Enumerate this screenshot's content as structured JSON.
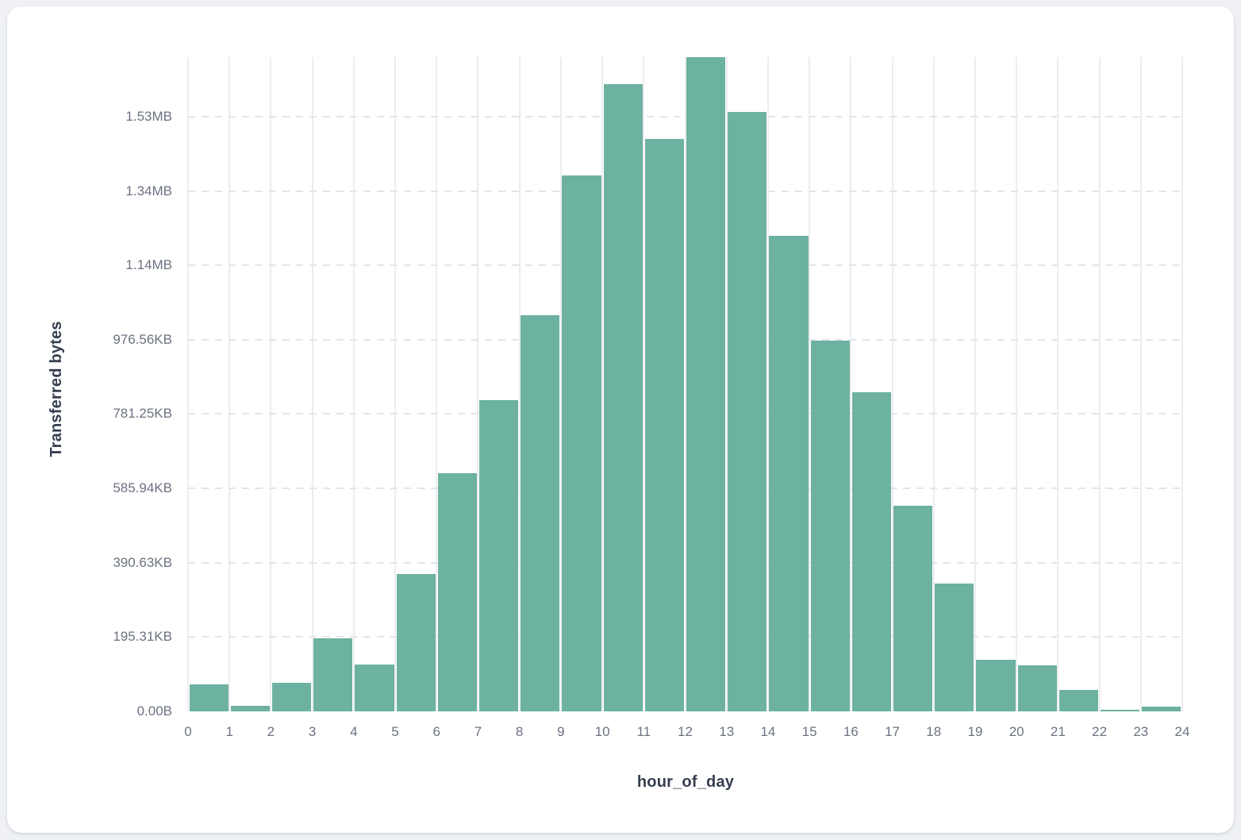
{
  "chart_data": {
    "type": "bar",
    "title": "",
    "xlabel": "hour_of_day",
    "ylabel": "Transferred bytes",
    "categories": [
      0,
      1,
      2,
      3,
      4,
      5,
      6,
      7,
      8,
      9,
      10,
      11,
      12,
      13,
      14,
      15,
      16,
      17,
      18,
      19,
      20,
      21,
      22,
      23
    ],
    "values": [
      72600,
      15200,
      77000,
      196500,
      125400,
      370000,
      640000,
      838000,
      1067000,
      1441000,
      1688000,
      1541000,
      1760000,
      1613000,
      1280000,
      997000,
      858000,
      554000,
      344000,
      139000,
      125000,
      57000,
      5000,
      13000
    ],
    "value_unit": "bytes",
    "ylim": [
      0,
      1760000
    ],
    "x_tick_labels": [
      "0",
      "1",
      "2",
      "3",
      "4",
      "5",
      "6",
      "7",
      "8",
      "9",
      "10",
      "11",
      "12",
      "13",
      "14",
      "15",
      "16",
      "17",
      "18",
      "19",
      "20",
      "21",
      "22",
      "23",
      "24"
    ],
    "y_ticks": [
      {
        "label": "0.00B",
        "value": 0
      },
      {
        "label": "195.31KB",
        "value": 200000
      },
      {
        "label": "390.63KB",
        "value": 400000
      },
      {
        "label": "585.94KB",
        "value": 600000
      },
      {
        "label": "781.25KB",
        "value": 800000
      },
      {
        "label": "976.56KB",
        "value": 1000000
      },
      {
        "label": "1.14MB",
        "value": 1200000
      },
      {
        "label": "1.34MB",
        "value": 1400000
      },
      {
        "label": "1.53MB",
        "value": 1600000
      }
    ],
    "grid": true,
    "legend": "none",
    "colors": {
      "bar": "#6db2a0",
      "vertical_grid": "#ededf1",
      "horizontal_grid": "#e2e5ea",
      "tick_text": "#6b7280",
      "axis_title_text": "#363e4f",
      "card_background": "#ffffff",
      "page_background": "#eff1f4"
    }
  }
}
